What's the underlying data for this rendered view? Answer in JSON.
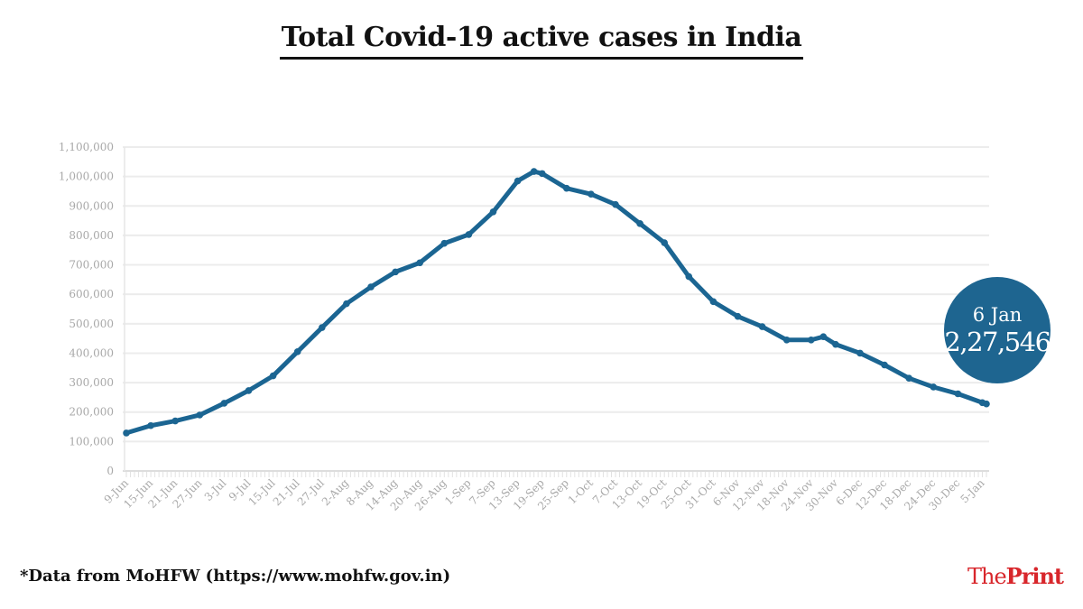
{
  "chart_data": {
    "type": "line",
    "title": "Total Covid-19 active cases in India",
    "xlabel": "",
    "ylabel": "",
    "ylim": [
      0,
      1100000
    ],
    "yticks": [
      0,
      100000,
      200000,
      300000,
      400000,
      500000,
      600000,
      700000,
      800000,
      900000,
      1000000,
      1100000
    ],
    "ytick_labels": [
      "0",
      "100,000",
      "200,000",
      "300,000",
      "400,000",
      "500,000",
      "600,000",
      "700,000",
      "800,000",
      "900,000",
      "1,000,000",
      "1,100,000"
    ],
    "xtick_labels": [
      "9-Jun",
      "15-Jun",
      "21-Jun",
      "27-Jun",
      "3-Jul",
      "9-Jul",
      "15-Jul",
      "21-Jul",
      "27-Jul",
      "2-Aug",
      "8-Aug",
      "14-Aug",
      "20-Aug",
      "26-Aug",
      "1-Sep",
      "7-Sep",
      "13-Sep",
      "19-Sep",
      "25-Sep",
      "1-Oct",
      "7-Oct",
      "13-Oct",
      "19-Oct",
      "25-Oct",
      "31-Oct",
      "6-Nov",
      "12-Nov",
      "18-Nov",
      "24-Nov",
      "30-Nov",
      "6-Dec",
      "12-Dec",
      "18-Dec",
      "24-Dec",
      "30-Dec",
      "5-Jan"
    ],
    "x": [
      "9-Jun",
      "15-Jun",
      "21-Jun",
      "27-Jun",
      "3-Jul",
      "9-Jul",
      "15-Jul",
      "21-Jul",
      "27-Jul",
      "2-Aug",
      "8-Aug",
      "14-Aug",
      "20-Aug",
      "26-Aug",
      "1-Sep",
      "7-Sep",
      "13-Sep",
      "17-Sep",
      "19-Sep",
      "25-Sep",
      "1-Oct",
      "7-Oct",
      "13-Oct",
      "19-Oct",
      "25-Oct",
      "31-Oct",
      "6-Nov",
      "12-Nov",
      "18-Nov",
      "24-Nov",
      "27-Nov",
      "30-Nov",
      "6-Dec",
      "12-Dec",
      "18-Dec",
      "24-Dec",
      "30-Dec",
      "5-Jan",
      "6-Jan"
    ],
    "values": [
      129000,
      154000,
      170000,
      190000,
      230000,
      273000,
      323000,
      405000,
      487000,
      568000,
      625000,
      676000,
      707000,
      773000,
      803000,
      880000,
      985000,
      1017000,
      1010000,
      960000,
      940000,
      905000,
      840000,
      775000,
      660000,
      575000,
      525000,
      490000,
      445000,
      445000,
      456000,
      430000,
      400000,
      360000,
      315000,
      285000,
      262000,
      232000,
      227546
    ],
    "grid": true,
    "line_color": "#1b6592",
    "annotation": {
      "date": "6 Jan",
      "value": "2,27,546",
      "color": "#1e6590"
    }
  },
  "footer": {
    "source": "*Data from MoHFW (https://www.mohfw.gov.in)",
    "logo_the": "The",
    "logo_print": "Print"
  }
}
